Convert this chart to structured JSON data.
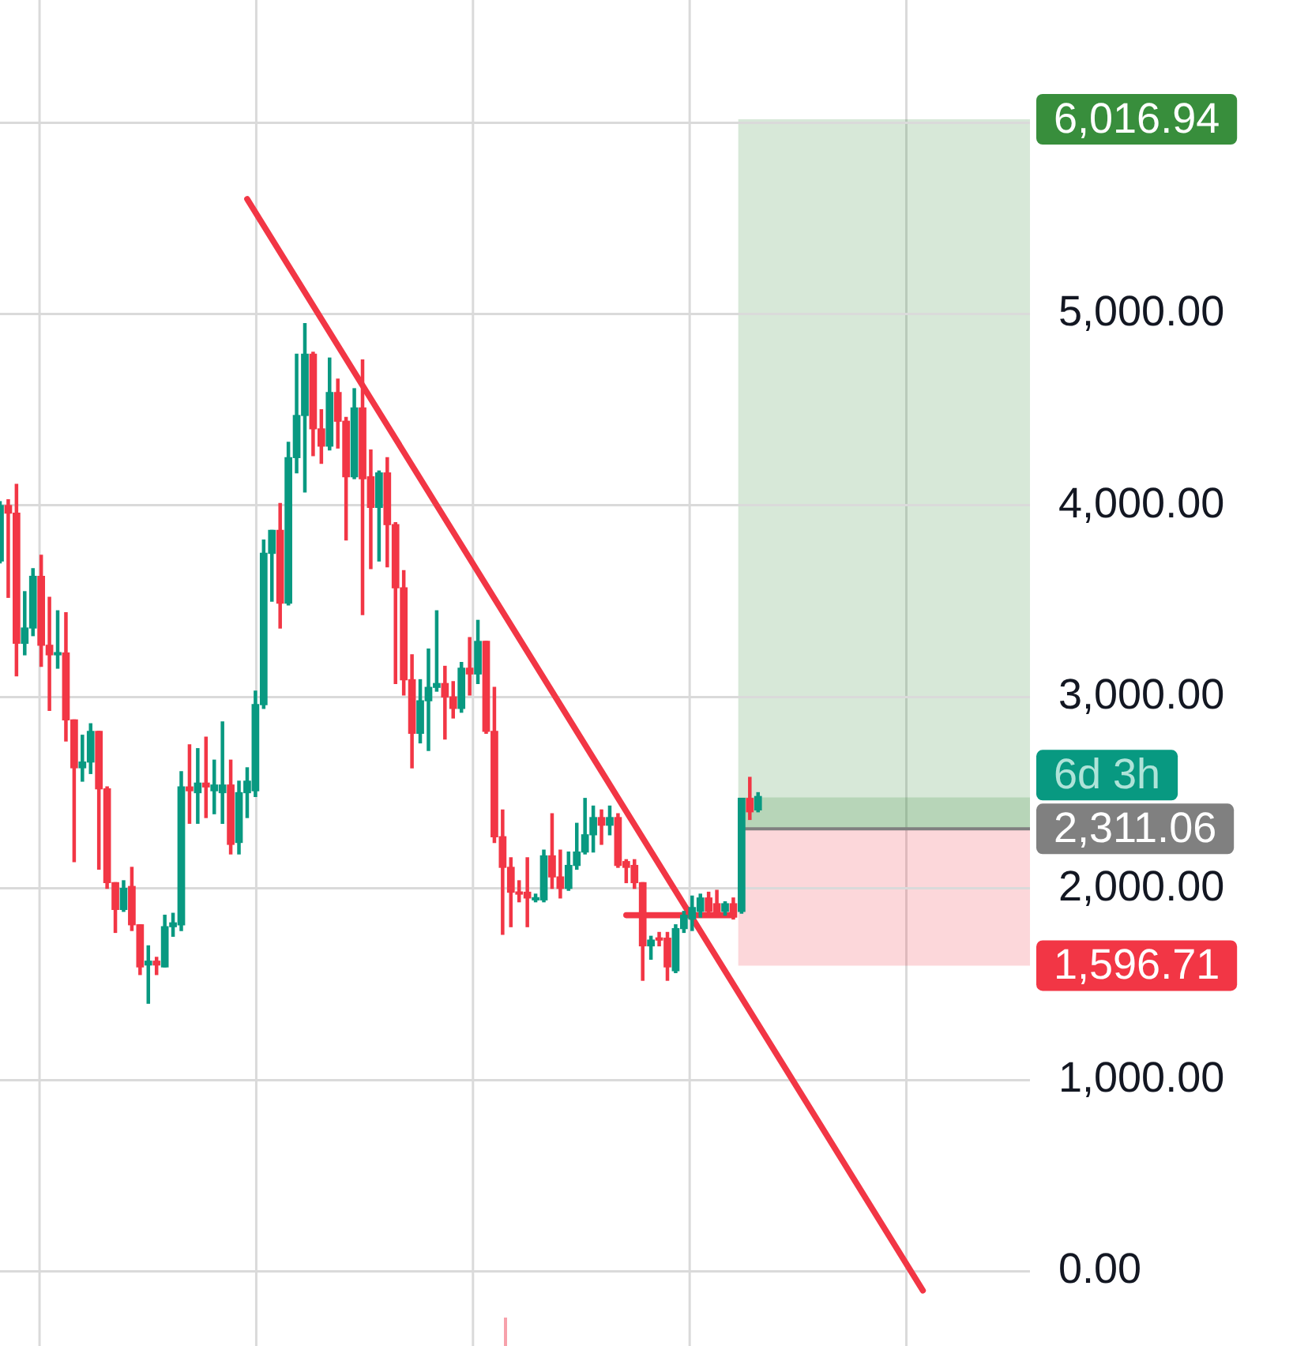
{
  "chart_data": {
    "type": "candlestick",
    "categories": [
      null,
      null,
      null,
      null,
      null,
      null,
      null,
      null,
      null,
      null,
      null,
      null,
      null,
      null,
      null,
      null,
      null,
      null,
      null,
      null,
      null,
      null,
      null,
      null,
      null,
      null,
      null,
      null,
      null,
      null,
      null,
      null,
      null,
      null,
      null,
      null,
      null,
      null,
      null,
      null,
      null,
      null,
      null,
      null,
      null,
      null,
      null,
      null,
      null,
      null,
      null,
      null,
      null,
      null,
      null,
      null,
      null,
      null,
      null,
      null,
      null,
      null,
      null,
      null,
      null,
      null,
      null,
      null,
      null,
      null,
      null,
      null,
      null,
      null,
      null,
      null,
      null,
      null,
      null,
      null,
      null,
      null,
      null,
      null,
      null,
      null,
      null,
      null,
      null,
      null,
      null,
      null,
      null,
      null,
      null,
      null,
      null,
      null,
      null,
      null,
      null,
      null,
      null,
      null,
      null,
      null,
      null,
      null,
      null,
      null,
      null,
      null,
      null,
      null,
      null,
      null,
      null,
      null,
      null,
      null,
      null,
      null,
      null,
      null,
      null,
      null
    ],
    "ohlc": [
      [
        3710,
        4020,
        3700,
        4000
      ],
      [
        4000,
        4030,
        3520,
        3960
      ],
      [
        3960,
        4110,
        3110,
        3280
      ],
      [
        3280,
        3550,
        3220,
        3360
      ],
      [
        3360,
        3670,
        3320,
        3630
      ],
      [
        3630,
        3740,
        3160,
        3270
      ],
      [
        3270,
        3520,
        2930,
        3220
      ],
      [
        3220,
        3450,
        3150,
        3230
      ],
      [
        3230,
        3440,
        2770,
        2880
      ],
      [
        2880,
        2880,
        2140,
        2630
      ],
      [
        2630,
        2800,
        2560,
        2660
      ],
      [
        2660,
        2860,
        2600,
        2820
      ],
      [
        2820,
        2820,
        2100,
        2520
      ],
      [
        2520,
        2530,
        2000,
        2030
      ],
      [
        2030,
        2030,
        1770,
        1890
      ],
      [
        1890,
        2040,
        1880,
        2000
      ],
      [
        2010,
        2110,
        1780,
        1810
      ],
      [
        1810,
        1810,
        1550,
        1590
      ],
      [
        1600,
        1700,
        1400,
        1620
      ],
      [
        1620,
        1640,
        1550,
        1600
      ],
      [
        1590,
        1860,
        1590,
        1800
      ],
      [
        1800,
        1870,
        1750,
        1820
      ],
      [
        1810,
        2610,
        1780,
        2530
      ],
      [
        2530,
        2750,
        2340,
        2510
      ],
      [
        2500,
        2730,
        2340,
        2550
      ],
      [
        2550,
        2790,
        2370,
        2530
      ],
      [
        2510,
        2670,
        2390,
        2540
      ],
      [
        2500,
        2870,
        2340,
        2540
      ],
      [
        2540,
        2670,
        2180,
        2230
      ],
      [
        2240,
        2560,
        2180,
        2500
      ],
      [
        2500,
        2630,
        2370,
        2560
      ],
      [
        2510,
        3030,
        2480,
        2960
      ],
      [
        2960,
        3820,
        2940,
        3750
      ],
      [
        3750,
        3870,
        3500,
        3870
      ],
      [
        3870,
        4010,
        3360,
        3490
      ],
      [
        3490,
        4330,
        3480,
        4250
      ],
      [
        4250,
        4790,
        4170,
        4470
      ],
      [
        4470,
        4950,
        4070,
        4790
      ],
      [
        4790,
        4800,
        4260,
        4400
      ],
      [
        4400,
        4500,
        4220,
        4310
      ],
      [
        4310,
        4770,
        4290,
        4590
      ],
      [
        4590,
        4660,
        4300,
        4440
      ],
      [
        4440,
        4460,
        3820,
        4150
      ],
      [
        4150,
        4610,
        4140,
        4510
      ],
      [
        4510,
        4760,
        3430,
        4140
      ],
      [
        4150,
        4290,
        3670,
        3990
      ],
      [
        3990,
        4180,
        3710,
        4170
      ],
      [
        4170,
        4250,
        3680,
        3900
      ],
      [
        3900,
        3910,
        3070,
        3570
      ],
      [
        3570,
        3660,
        3010,
        3090
      ],
      [
        3090,
        3220,
        2630,
        2810
      ],
      [
        2810,
        3090,
        2760,
        2980
      ],
      [
        2980,
        3250,
        2720,
        3050
      ],
      [
        3050,
        3450,
        3030,
        3070
      ],
      [
        3070,
        3160,
        2780,
        3000
      ],
      [
        3000,
        3080,
        2890,
        2940
      ],
      [
        2940,
        3180,
        2920,
        3150
      ],
      [
        3150,
        3310,
        3010,
        3120
      ],
      [
        3120,
        3400,
        3070,
        3290
      ],
      [
        3290,
        3290,
        2810,
        2820
      ],
      [
        2820,
        3050,
        2240,
        2270
      ],
      [
        2270,
        2410,
        1760,
        2110
      ],
      [
        2110,
        2160,
        1800,
        1980
      ],
      [
        1980,
        2040,
        1930,
        1970
      ],
      [
        1980,
        2160,
        1800,
        1950
      ],
      [
        1940,
        1970,
        1930,
        1950
      ],
      [
        1940,
        2200,
        1930,
        2170
      ],
      [
        2170,
        2390,
        2000,
        2060
      ],
      [
        2060,
        2200,
        1950,
        2000
      ],
      [
        2000,
        2190,
        1990,
        2120
      ],
      [
        2120,
        2340,
        2100,
        2190
      ],
      [
        2190,
        2470,
        2180,
        2280
      ],
      [
        2280,
        2430,
        2190,
        2370
      ],
      [
        2370,
        2410,
        2230,
        2330
      ],
      [
        2330,
        2430,
        2280,
        2370
      ],
      [
        2370,
        2390,
        2110,
        2120
      ],
      [
        2140,
        2150,
        2030,
        2110
      ],
      [
        2120,
        2150,
        2000,
        2030
      ],
      [
        2030,
        2030,
        1520,
        1700
      ],
      [
        1700,
        1750,
        1630,
        1730
      ],
      [
        1740,
        1770,
        1700,
        1730
      ],
      [
        1740,
        1770,
        1520,
        1590
      ],
      [
        1570,
        1810,
        1560,
        1790
      ],
      [
        1790,
        1880,
        1770,
        1860
      ],
      [
        1840,
        1960,
        1780,
        1900
      ],
      [
        1880,
        1970,
        1850,
        1950
      ],
      [
        1950,
        1980,
        1850,
        1880
      ],
      [
        1920,
        1990,
        1850,
        1860
      ],
      [
        1880,
        1930,
        1860,
        1920
      ],
      [
        1920,
        1950,
        1840,
        1850
      ],
      [
        1880,
        2470,
        1870,
        2470
      ],
      [
        2470,
        2580,
        2360,
        2400
      ],
      [
        2410,
        2500,
        2400,
        2480
      ],
      null,
      null,
      null,
      null,
      null,
      null,
      null,
      null,
      null,
      null,
      null,
      null,
      null,
      null,
      null,
      null,
      null,
      null,
      null,
      null,
      null,
      null,
      null,
      null,
      null,
      null,
      null,
      null,
      null,
      null,
      null,
      null,
      null
    ],
    "colors": [
      "#089981",
      "#f23645",
      "#f23645",
      "#089981",
      "#089981",
      "#f23645",
      "#f23645",
      "#089981",
      "#f23645",
      "#f23645",
      "#089981",
      "#089981",
      "#f23645",
      "#f23645",
      "#f23645",
      "#089981",
      "#f23645",
      "#f23645",
      "#089981",
      "#f23645",
      "#089981",
      "#089981",
      "#089981",
      "#f23645",
      "#089981",
      "#f23645",
      "#089981",
      "#089981",
      "#f23645",
      "#089981",
      "#089981",
      "#089981",
      "#089981",
      "#089981",
      "#f23645",
      "#089981",
      "#089981",
      "#089981",
      "#f23645",
      "#f23645",
      "#089981",
      "#f23645",
      "#f23645",
      "#089981",
      "#f23645",
      "#f23645",
      "#089981",
      "#f23645",
      "#f23645",
      "#f23645",
      "#f23645",
      "#089981",
      "#089981",
      "#089981",
      "#f23645",
      "#f23645",
      "#089981",
      "#f23645",
      "#089981",
      "#f23645",
      "#f23645",
      "#f23645",
      "#f23645",
      "#f23645",
      "#f23645",
      "#089981",
      "#089981",
      "#f23645",
      "#f23645",
      "#089981",
      "#089981",
      "#089981",
      "#089981",
      "#f23645",
      "#089981",
      "#f23645",
      "#f23645",
      "#f23645",
      "#f23645",
      "#089981",
      "#f23645",
      "#f23645",
      "#089981",
      "#089981",
      "#089981",
      "#089981",
      "#f23645",
      "#f23645",
      "#089981",
      "#f23645",
      "#089981",
      "#f23645",
      "#089981",
      null,
      null,
      null,
      null,
      null,
      null,
      null,
      null,
      null,
      null,
      null,
      null,
      null,
      null,
      null,
      null,
      null,
      null,
      null,
      null,
      null,
      null,
      null,
      null,
      null,
      null,
      null,
      null,
      null,
      null,
      null,
      null,
      null
    ],
    "series": [
      {
        "type": "line",
        "color": "#f23645",
        "values": [
          null,
          null,
          null,
          null,
          null,
          null,
          null,
          null,
          null,
          null,
          null,
          null,
          null,
          null,
          null,
          null,
          null,
          null,
          null,
          null,
          null,
          null,
          null,
          null,
          null,
          null,
          null,
          null,
          null,
          null,
          5600,
          null,
          null,
          null,
          null,
          null,
          null,
          null,
          null,
          null,
          null,
          null,
          null,
          null,
          null,
          null,
          null,
          null,
          null,
          null,
          null,
          null,
          null,
          null,
          null,
          null,
          null,
          null,
          null,
          null,
          null,
          null,
          null,
          null,
          null,
          null,
          null,
          null,
          null,
          null,
          null,
          null,
          null,
          null,
          null,
          null,
          null,
          null,
          null,
          null,
          null,
          null,
          null,
          null,
          null,
          null,
          null,
          null,
          null,
          null,
          null,
          null,
          null,
          null,
          null,
          null,
          null,
          null,
          null,
          null,
          null,
          null,
          null,
          null,
          null,
          null,
          null,
          null,
          null,
          null,
          null,
          null,
          -100,
          null,
          null,
          null,
          null,
          null,
          null,
          null,
          null,
          null,
          null,
          null,
          null,
          null
        ]
      },
      {
        "type": "line",
        "color": "#f23645",
        "values": [
          null,
          null,
          null,
          null,
          null,
          null,
          null,
          null,
          null,
          null,
          null,
          null,
          null,
          null,
          null,
          null,
          null,
          null,
          null,
          null,
          null,
          null,
          null,
          null,
          null,
          null,
          null,
          null,
          null,
          null,
          null,
          null,
          null,
          null,
          null,
          null,
          null,
          null,
          null,
          null,
          null,
          null,
          null,
          null,
          null,
          null,
          null,
          null,
          null,
          null,
          null,
          null,
          null,
          null,
          null,
          null,
          null,
          null,
          null,
          null,
          null,
          null,
          null,
          null,
          null,
          null,
          null,
          null,
          null,
          null,
          null,
          null,
          null,
          null,
          null,
          null,
          1860,
          null,
          null,
          null,
          null,
          null,
          null,
          null,
          null,
          null,
          null,
          null,
          null,
          1860,
          null,
          null,
          null,
          null,
          null,
          null,
          null,
          null,
          null,
          null,
          null,
          null,
          null,
          null,
          null,
          null,
          null,
          null,
          null,
          null,
          null,
          null,
          null,
          null,
          null,
          null,
          null,
          null,
          null,
          null,
          null,
          null,
          null,
          null,
          null,
          null
        ]
      }
    ],
    "ylim": [
      -390,
      6640
    ],
    "yticks": [
      {
        "value": 0,
        "label": "0.00"
      },
      {
        "value": 1000,
        "label": "1,000.00"
      },
      {
        "value": 2000,
        "label": "2,000.00"
      },
      {
        "value": 3000,
        "label": "3,000.00"
      },
      {
        "value": 4000,
        "label": "4,000.00"
      },
      {
        "value": 5000,
        "label": "5,000.00"
      },
      {
        "value": 6000,
        "label": null
      }
    ],
    "grid": true,
    "tick_labels": "y",
    "marker": "none",
    "bands": [
      {
        "axis": "y",
        "from": 2311.06,
        "to": 6016.94,
        "label": "6,016.94",
        "color": "#388e3c"
      },
      {
        "axis": "y",
        "from": 2311.06,
        "to": 1596.71,
        "label": "1,596.71",
        "color": "#f23645"
      },
      {
        "axis": "y",
        "from": 2311.06,
        "to": 2475,
        "color": "#388e3c"
      }
    ],
    "ref_lines": [
      {
        "axis": "y",
        "value": 2311.06,
        "label": "2,311.06",
        "color": "#808080"
      }
    ],
    "annotations": [
      "6d 3h"
    ]
  }
}
